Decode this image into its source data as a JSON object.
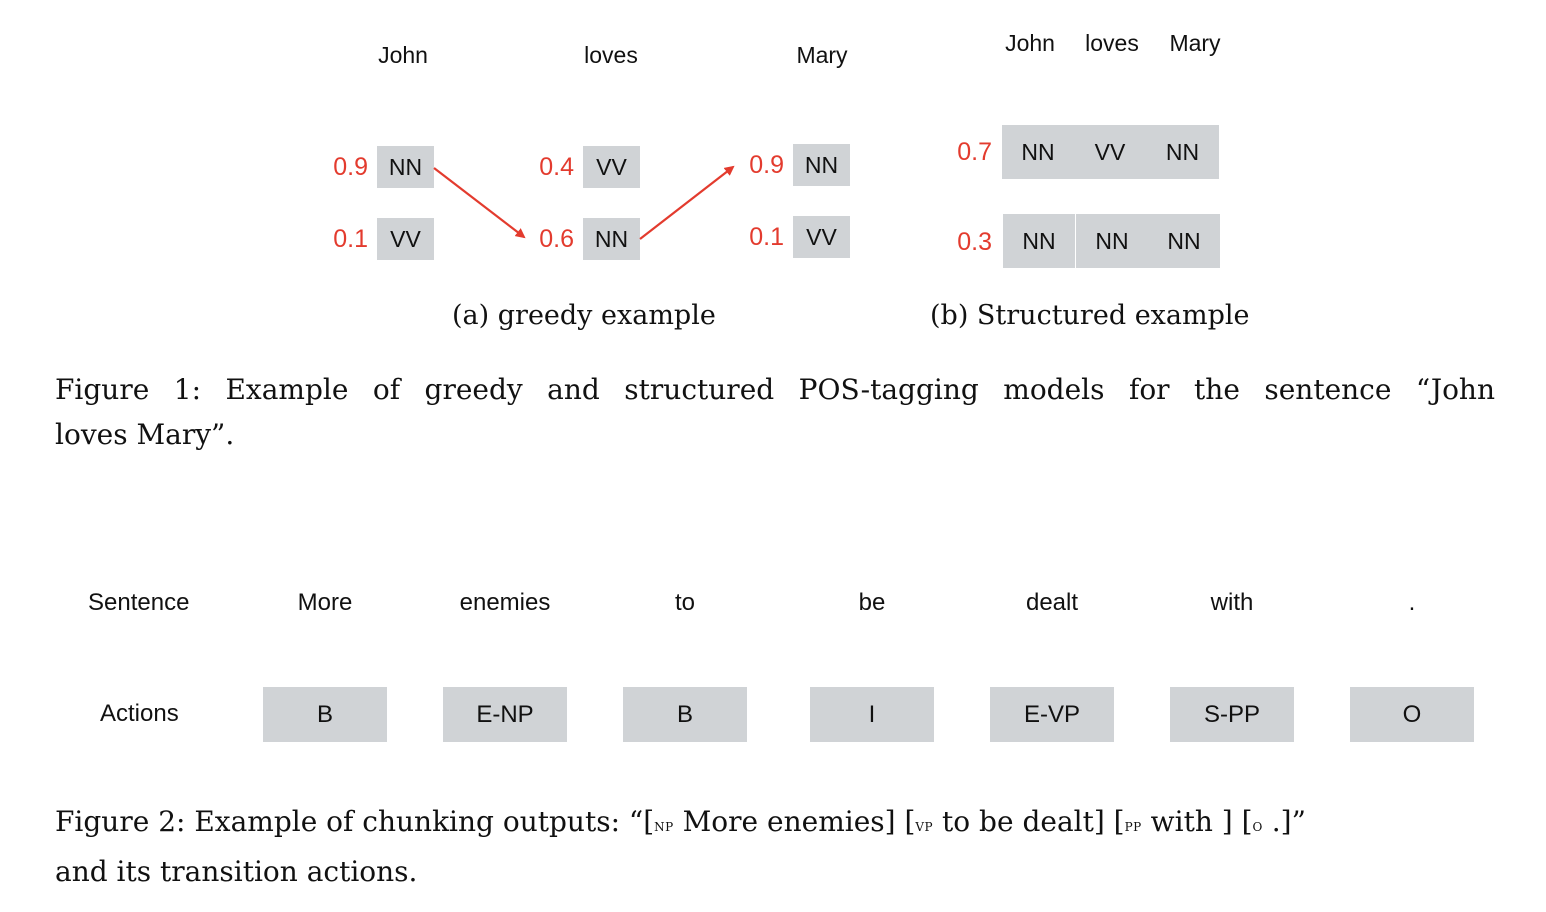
{
  "figure1": {
    "greedy": {
      "words": [
        "John",
        "loves",
        "Mary"
      ],
      "columns": [
        {
          "tags": [
            {
              "score": "0.9",
              "tag": "NN"
            },
            {
              "score": "0.1",
              "tag": "VV"
            }
          ]
        },
        {
          "tags": [
            {
              "score": "0.4",
              "tag": "VV"
            },
            {
              "score": "0.6",
              "tag": "NN"
            }
          ]
        },
        {
          "tags": [
            {
              "score": "0.9",
              "tag": "NN"
            },
            {
              "score": "0.1",
              "tag": "VV"
            }
          ]
        }
      ],
      "subcaption": "(a) greedy example"
    },
    "structured": {
      "words": [
        "John",
        "loves",
        "Mary"
      ],
      "rows": [
        {
          "score": "0.7",
          "tags": [
            "NN",
            "VV",
            "NN"
          ]
        },
        {
          "score": "0.3",
          "tags": [
            "NN",
            "NN",
            "NN"
          ]
        }
      ],
      "subcaption": "(b) Structured example"
    },
    "caption_line1": "Figure 1:  Example of greedy and structured POS-tagging models for the sentence “John",
    "caption_line2": "loves Mary”.",
    "arrow_color": "#e33b2e"
  },
  "figure2": {
    "sentence_label": "Sentence",
    "actions_label": "Actions",
    "words": [
      "More",
      "enemies",
      "to",
      "be",
      "dealt",
      "with",
      "."
    ],
    "actions": [
      "B",
      "E-NP",
      "B",
      "I",
      "E-VP",
      "S-PP",
      "O"
    ],
    "caption": {
      "prefix": "Figure 2:  Example of chunking outputs:  “[",
      "np": "np",
      "np_text": " More enemies] [",
      "vp": "vp",
      "vp_text": " to be dealt] [",
      "pp": "pp",
      "pp_text": " with ] [",
      "o": "o",
      "o_text": " .]”",
      "line2": "and its transition actions."
    }
  }
}
